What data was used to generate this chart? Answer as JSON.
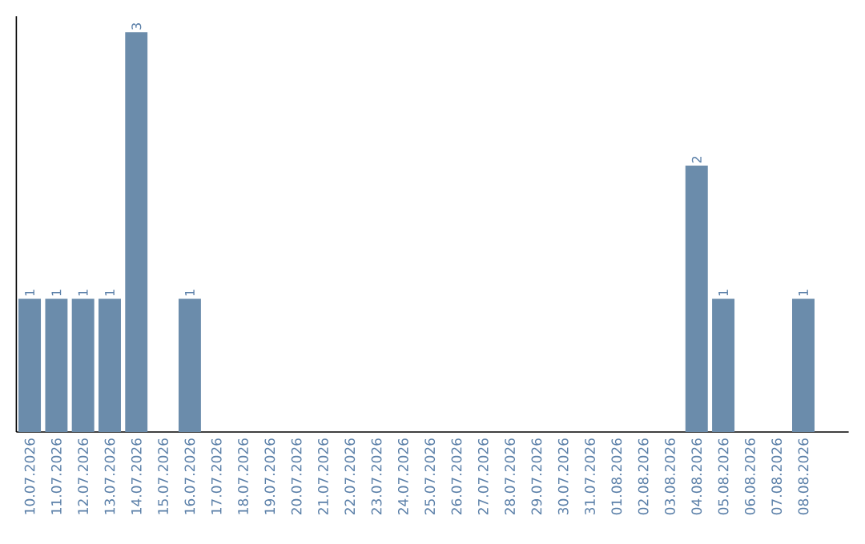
{
  "chart_data": {
    "type": "bar",
    "categories": [
      "10.07.2026",
      "11.07.2026",
      "12.07.2026",
      "13.07.2026",
      "14.07.2026",
      "15.07.2026",
      "16.07.2026",
      "17.07.2026",
      "18.07.2026",
      "19.07.2026",
      "20.07.2026",
      "21.07.2026",
      "22.07.2026",
      "23.07.2026",
      "24.07.2026",
      "25.07.2026",
      "26.07.2026",
      "27.07.2026",
      "28.07.2026",
      "29.07.2026",
      "30.07.2026",
      "31.07.2026",
      "01.08.2026",
      "02.08.2026",
      "03.08.2026",
      "04.08.2026",
      "05.08.2026",
      "06.08.2026",
      "07.08.2026",
      "08.08.2026"
    ],
    "values": [
      1,
      1,
      1,
      1,
      3,
      0,
      1,
      0,
      0,
      0,
      0,
      0,
      0,
      0,
      0,
      0,
      0,
      0,
      0,
      0,
      0,
      0,
      0,
      0,
      0,
      2,
      1,
      0,
      0,
      1
    ],
    "value_labels": [
      "1",
      "1",
      "1",
      "1",
      "3",
      null,
      "1",
      null,
      null,
      null,
      null,
      null,
      null,
      null,
      null,
      null,
      null,
      null,
      null,
      null,
      null,
      null,
      null,
      null,
      null,
      "2",
      "1",
      null,
      null,
      "1"
    ],
    "color": "#6b8cab"
  }
}
